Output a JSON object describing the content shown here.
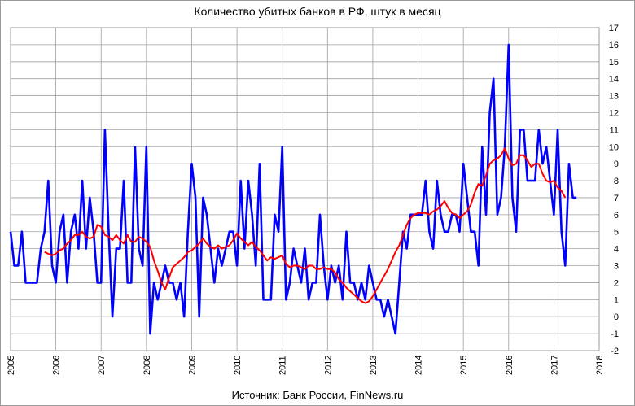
{
  "chart_data": {
    "type": "line",
    "title": "Количество  убитых  банков  в РФ, штук в месяц",
    "source": "Источник: Банк России, FinNews.ru",
    "xlabel": "",
    "ylabel": "",
    "x_ticks": [
      "2005",
      "2006",
      "2007",
      "2008",
      "2009",
      "2010",
      "2011",
      "2012",
      "2013",
      "2014",
      "2015",
      "2016",
      "2017",
      "2018"
    ],
    "y_ticks": [
      "-2",
      "-1",
      "0",
      "1",
      "2",
      "3",
      "4",
      "5",
      "6",
      "7",
      "8",
      "9",
      "10",
      "11",
      "12",
      "13",
      "14",
      "15",
      "16",
      "17"
    ],
    "xlim": [
      2005,
      2018
    ],
    "ylim": [
      -2,
      17
    ],
    "grid": true,
    "legend": "none",
    "series": [
      {
        "color": "#0000ff",
        "x_start": 2005.0,
        "x_step": 0.0833333,
        "values": [
          5,
          3,
          3,
          5,
          2,
          2,
          2,
          2,
          4,
          5,
          8,
          3,
          2,
          5,
          6,
          2,
          5,
          6,
          4,
          8,
          4,
          7,
          5,
          2,
          2,
          11,
          5,
          0,
          4,
          4,
          8,
          2,
          2,
          10,
          4,
          3,
          10,
          -1,
          2,
          1,
          2,
          3,
          2,
          2,
          1,
          2,
          0,
          5,
          9,
          7,
          0,
          7,
          6,
          4,
          2,
          4,
          3,
          4,
          5,
          5,
          3,
          8,
          4,
          8,
          6,
          3,
          9,
          1,
          1,
          1,
          6,
          5,
          10,
          1,
          2,
          4,
          3,
          2,
          4,
          1,
          2,
          2,
          6,
          3,
          1,
          3,
          2,
          3,
          1,
          5,
          2,
          2,
          1,
          2,
          1,
          3,
          2,
          1,
          1,
          0,
          1,
          0,
          -1,
          2,
          5,
          4,
          6,
          6,
          6,
          6,
          8,
          5,
          4,
          8,
          6,
          5,
          5,
          6,
          6,
          5,
          9,
          7,
          5,
          5,
          3,
          10,
          6,
          12,
          14,
          6,
          7,
          10,
          16,
          7,
          5,
          11,
          11,
          8,
          8,
          8,
          11,
          9,
          10,
          8,
          6,
          11,
          5,
          3,
          9,
          7,
          7
        ]
      },
      {
        "color": "#ff0000",
        "x_start": 2005.75,
        "x_step": 0.0833333,
        "values": [
          3.8,
          3.7,
          3.6,
          3.7,
          3.9,
          4.0,
          4.3,
          4.5,
          4.8,
          4.8,
          5.0,
          4.7,
          4.6,
          4.7,
          5.4,
          5.3,
          4.8,
          4.7,
          4.5,
          4.8,
          4.5,
          4.3,
          4.8,
          4.4,
          4.4,
          4.7,
          4.6,
          4.4,
          4.1,
          3.3,
          2.7,
          2.0,
          1.6,
          2.3,
          2.9,
          3.1,
          3.3,
          3.5,
          3.8,
          3.9,
          4.1,
          4.3,
          4.6,
          4.3,
          4.1,
          4.0,
          4.2,
          4.0,
          4.1,
          4.2,
          4.5,
          4.9,
          4.6,
          4.4,
          4.2,
          4.4,
          4.1,
          3.9,
          3.6,
          3.3,
          3.5,
          3.4,
          3.5,
          3.6,
          3.1,
          2.9,
          3.0,
          3.0,
          2.9,
          2.8,
          3.0,
          3.0,
          2.8,
          2.8,
          2.9,
          2.8,
          2.8,
          2.6,
          2.2,
          2.0,
          1.7,
          1.5,
          1.3,
          1.1,
          0.9,
          0.8,
          0.9,
          1.2,
          1.6,
          2.0,
          2.4,
          2.8,
          3.3,
          3.8,
          4.2,
          4.8,
          5.4,
          5.8,
          6.0,
          6.1,
          6.1,
          6.1,
          6.0,
          6.2,
          6.3,
          6.5,
          6.8,
          6.4,
          6.1,
          6.0,
          5.8,
          6.0,
          6.2,
          6.6,
          7.3,
          7.8,
          7.7,
          8.3,
          9.0,
          9.2,
          9.3,
          9.5,
          9.9,
          9.3,
          8.9,
          9.0,
          9.5,
          9.5,
          9.2,
          8.8,
          9.0,
          9.0,
          8.4,
          8.0,
          7.9,
          8.0,
          7.6,
          7.4,
          7.0
        ]
      }
    ]
  }
}
